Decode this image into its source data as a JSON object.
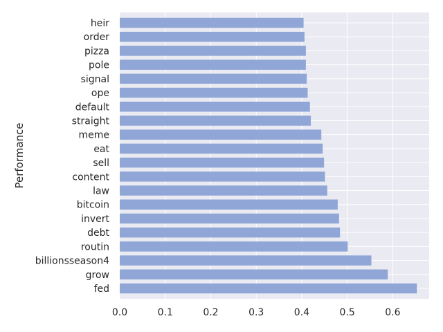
{
  "chart_data": {
    "type": "bar",
    "orientation": "horizontal",
    "title": "",
    "xlabel": "",
    "ylabel": "Performance",
    "xlim": [
      0,
      0.68
    ],
    "xticks": [
      0.0,
      0.1,
      0.2,
      0.3,
      0.4,
      0.5,
      0.6
    ],
    "xtick_labels": [
      "0.0",
      "0.1",
      "0.2",
      "0.3",
      "0.4",
      "0.5",
      "0.6"
    ],
    "grid": true,
    "bar_color": "#8fa6d6",
    "background_color": "#eaeaf2",
    "grid_color": "#ffffff",
    "categories": [
      "heir",
      "order",
      "pizza",
      "pole",
      "signal",
      "ope",
      "default",
      "straight",
      "meme",
      "eat",
      "sell",
      "content",
      "law",
      "bitcoin",
      "invert",
      "debt",
      "routin",
      "billionsseason4",
      "grow",
      "fed"
    ],
    "values": [
      0.404,
      0.406,
      0.409,
      0.409,
      0.411,
      0.413,
      0.418,
      0.42,
      0.443,
      0.446,
      0.449,
      0.451,
      0.456,
      0.479,
      0.482,
      0.484,
      0.501,
      0.553,
      0.589,
      0.653
    ]
  }
}
